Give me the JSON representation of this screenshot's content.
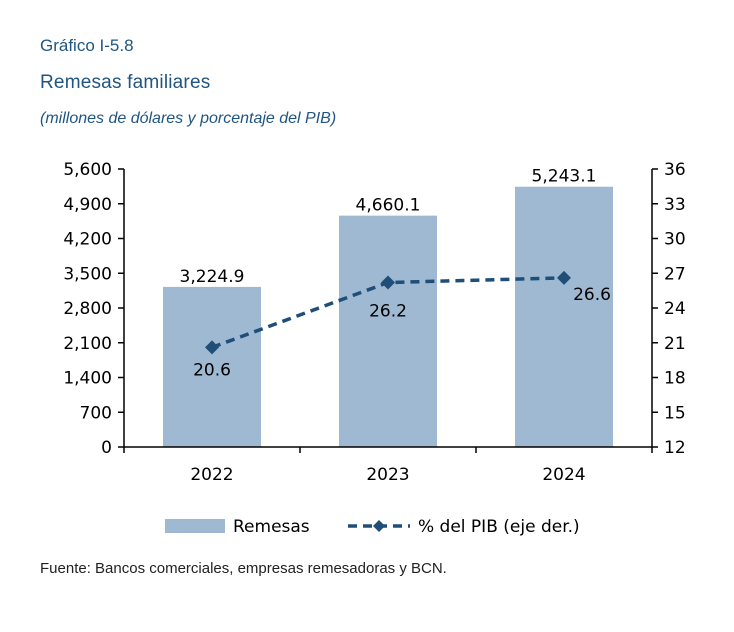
{
  "header": {
    "figure_number": "Gráfico I-5.8",
    "title": "Remesas familiares",
    "subtitle": "(millones de dólares y porcentaje del PIB)"
  },
  "source": "Fuente: Bancos comerciales, empresas remesadoras y BCN.",
  "colors": {
    "bar": "#9fb9d2",
    "line": "#1f4e79",
    "text": "#1f5582"
  },
  "chart_data": {
    "type": "bar",
    "categories": [
      "2022",
      "2023",
      "2024"
    ],
    "series": [
      {
        "name": "Remesas",
        "type": "bar",
        "axis": "left",
        "values": [
          3224.9,
          4660.1,
          5243.1
        ],
        "labels": [
          "3,224.9",
          "4,660.1",
          "5,243.1"
        ]
      },
      {
        "name": "% del PIB (eje der.)",
        "type": "line",
        "axis": "right",
        "values": [
          20.6,
          26.2,
          26.6
        ],
        "labels": [
          "20.6",
          "26.2",
          "26.6"
        ]
      }
    ],
    "left_axis": {
      "ylim": [
        0,
        5600
      ],
      "ticks": [
        0,
        700,
        1400,
        2100,
        2800,
        3500,
        4200,
        4900,
        5600
      ],
      "tick_labels": [
        "0",
        "700",
        "1,400",
        "2,100",
        "2,800",
        "3,500",
        "4,200",
        "4,900",
        "5,600"
      ]
    },
    "right_axis": {
      "ylim": [
        12,
        36
      ],
      "ticks": [
        12,
        15,
        18,
        21,
        24,
        27,
        30,
        33,
        36
      ],
      "tick_labels": [
        "12",
        "15",
        "18",
        "21",
        "24",
        "27",
        "30",
        "33",
        "36"
      ]
    },
    "legend": {
      "position": "bottom"
    },
    "grid": false
  }
}
